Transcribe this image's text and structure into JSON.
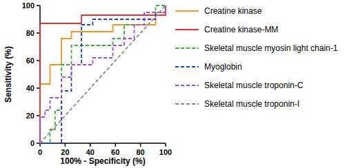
{
  "chart_data": {
    "type": "line",
    "x_label": "100% - Specificity (%)",
    "y_label": "Sensitivity (%)",
    "xlim": [
      0,
      100
    ],
    "ylim": [
      0,
      100
    ],
    "xticks": [
      0,
      20,
      40,
      60,
      80,
      100
    ],
    "yticks": [
      0,
      20,
      40,
      60,
      80,
      100
    ],
    "grid": false,
    "legend": "right",
    "series": [
      {
        "name": "Creatine kinase",
        "color": "#f7941d",
        "line_style": "solid",
        "x": [
          0,
          0,
          8,
          8,
          17,
          17,
          25,
          25,
          58,
          58,
          92,
          92,
          100,
          100
        ],
        "values": [
          0,
          43,
          43,
          57,
          57,
          76,
          76,
          81,
          81,
          86,
          86,
          95,
          95,
          100
        ]
      },
      {
        "name": "Creatine kinase-MM",
        "color": "#e8312f",
        "line_style": "solid",
        "x": [
          0,
          0,
          33,
          33,
          100,
          100
        ],
        "values": [
          0,
          87,
          87,
          93,
          93,
          100
        ]
      },
      {
        "name": "Skeletal muscle myosin light chain-1",
        "color": "#33b233",
        "line_style": "dashed",
        "x": [
          0,
          8,
          8,
          12,
          12,
          17,
          17,
          25,
          25,
          58,
          58,
          67,
          67,
          83,
          83,
          92,
          92,
          100
        ],
        "values": [
          0,
          0,
          10,
          10,
          24,
          24,
          57,
          57,
          71,
          71,
          76,
          76,
          86,
          86,
          95,
          95,
          100,
          100
        ]
      },
      {
        "name": "Myoglobin",
        "color": "#1f3fcf",
        "line_style": "dashed",
        "x": [
          0,
          17,
          17,
          25,
          25,
          33,
          33,
          42,
          42,
          92,
          92,
          100,
          100
        ],
        "values": [
          0,
          0,
          38,
          38,
          57,
          57,
          86,
          86,
          90,
          90,
          95,
          95,
          100
        ]
      },
      {
        "name": "Skeletal muscle troponin-C",
        "color": "#a347e6",
        "line_style": "dashed",
        "x": [
          0,
          0,
          4,
          4,
          8,
          8,
          17,
          17,
          25,
          25,
          42,
          42,
          58,
          58,
          67,
          67,
          75,
          75,
          83,
          83,
          100,
          100
        ],
        "values": [
          0,
          19,
          19,
          24,
          24,
          33,
          33,
          48,
          48,
          57,
          57,
          62,
          62,
          71,
          71,
          76,
          76,
          86,
          86,
          95,
          95,
          100
        ]
      },
      {
        "name": "Skeletal muscle troponin-I",
        "color": "#888888",
        "line_style": "dashed",
        "x": [
          0,
          100
        ],
        "values": [
          0,
          100
        ]
      }
    ]
  }
}
